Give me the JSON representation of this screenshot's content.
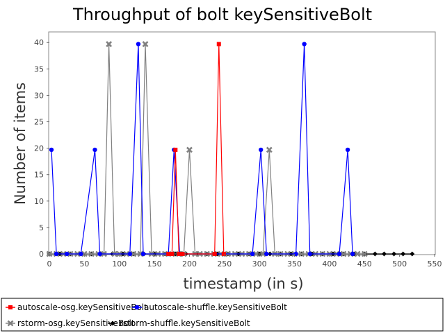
{
  "chart_data": {
    "type": "line",
    "title": "Throughput of bolt keySensitiveBolt",
    "xlabel": "timestamp (in s)",
    "ylabel": "Number of items",
    "xlim": [
      0,
      550
    ],
    "ylim": [
      0,
      42
    ],
    "xticks": [
      0,
      50,
      100,
      150,
      200,
      250,
      300,
      350,
      400,
      450,
      500,
      550
    ],
    "yticks": [
      0,
      5,
      10,
      15,
      20,
      25,
      30,
      35,
      40
    ],
    "grid": false,
    "legend_position": "bottom",
    "series": [
      {
        "name": "autoscale-osg.keySensitiveBolt",
        "color": "#ff0000",
        "marker": "square",
        "points": [
          [
            170,
            0
          ],
          [
            175,
            0
          ],
          [
            180,
            19.7
          ],
          [
            185,
            0
          ],
          [
            190,
            0
          ],
          [
            236,
            0
          ],
          [
            242,
            39.7
          ],
          [
            249,
            0
          ]
        ]
      },
      {
        "name": "autoscale-shuffle.keySensitiveBolt",
        "color": "#0000ff",
        "marker": "circle",
        "points": [
          [
            3,
            19.7
          ],
          [
            10,
            0
          ],
          [
            25,
            0
          ],
          [
            45,
            0
          ],
          [
            65,
            19.7
          ],
          [
            72,
            0
          ],
          [
            115,
            0
          ],
          [
            127,
            39.7
          ],
          [
            134,
            0
          ],
          [
            170,
            0
          ],
          [
            178,
            19.7
          ],
          [
            186,
            0
          ],
          [
            290,
            0
          ],
          [
            302,
            19.7
          ],
          [
            310,
            0
          ],
          [
            352,
            0
          ],
          [
            364,
            39.7
          ],
          [
            372,
            0
          ],
          [
            414,
            0
          ],
          [
            426,
            19.7
          ],
          [
            433,
            0
          ]
        ]
      },
      {
        "name": "rstorm-osg.keySensitiveBolt",
        "color": "#808080",
        "marker": "x",
        "points": [
          [
            0,
            0
          ],
          [
            10,
            0
          ],
          [
            20,
            0
          ],
          [
            30,
            0
          ],
          [
            40,
            0
          ],
          [
            50,
            0
          ],
          [
            60,
            0
          ],
          [
            70,
            0
          ],
          [
            78,
            0
          ],
          [
            85,
            39.7
          ],
          [
            93,
            0
          ],
          [
            100,
            0
          ],
          [
            110,
            0
          ],
          [
            120,
            0
          ],
          [
            130,
            0
          ],
          [
            137,
            39.7
          ],
          [
            146,
            0
          ],
          [
            155,
            0
          ],
          [
            165,
            0
          ],
          [
            175,
            0
          ],
          [
            185,
            0
          ],
          [
            192,
            0
          ],
          [
            200,
            19.7
          ],
          [
            208,
            0
          ],
          [
            215,
            0
          ],
          [
            225,
            0
          ],
          [
            235,
            0
          ],
          [
            245,
            0
          ],
          [
            255,
            0
          ],
          [
            265,
            0
          ],
          [
            275,
            0
          ],
          [
            285,
            0
          ],
          [
            295,
            0
          ],
          [
            305,
            0
          ],
          [
            314,
            19.7
          ],
          [
            322,
            0
          ],
          [
            330,
            0
          ],
          [
            340,
            0
          ],
          [
            350,
            0
          ],
          [
            360,
            0
          ],
          [
            370,
            0
          ],
          [
            380,
            0
          ],
          [
            390,
            0
          ],
          [
            400,
            0
          ],
          [
            410,
            0
          ],
          [
            420,
            0
          ],
          [
            430,
            0
          ],
          [
            440,
            0
          ],
          [
            450,
            0
          ]
        ]
      },
      {
        "name": "rstorm-shuffle.keySensitiveBolt",
        "color": "#000000",
        "marker": "diamond",
        "points": [
          [
            0,
            0
          ],
          [
            15,
            0
          ],
          [
            30,
            0
          ],
          [
            45,
            0
          ],
          [
            60,
            0
          ],
          [
            75,
            0
          ],
          [
            90,
            0
          ],
          [
            105,
            0
          ],
          [
            120,
            0
          ],
          [
            135,
            0
          ],
          [
            150,
            0
          ],
          [
            165,
            0
          ],
          [
            180,
            0
          ],
          [
            195,
            0
          ],
          [
            210,
            0
          ],
          [
            225,
            0
          ],
          [
            240,
            0
          ],
          [
            255,
            0
          ],
          [
            270,
            0
          ],
          [
            285,
            0
          ],
          [
            300,
            0
          ],
          [
            315,
            0
          ],
          [
            330,
            0
          ],
          [
            345,
            0
          ],
          [
            360,
            0
          ],
          [
            375,
            0
          ],
          [
            390,
            0
          ],
          [
            405,
            0
          ],
          [
            420,
            0
          ],
          [
            435,
            0
          ],
          [
            450,
            0
          ],
          [
            465,
            0
          ],
          [
            478,
            0
          ],
          [
            492,
            0
          ],
          [
            505,
            0
          ],
          [
            518,
            0
          ]
        ]
      }
    ]
  }
}
